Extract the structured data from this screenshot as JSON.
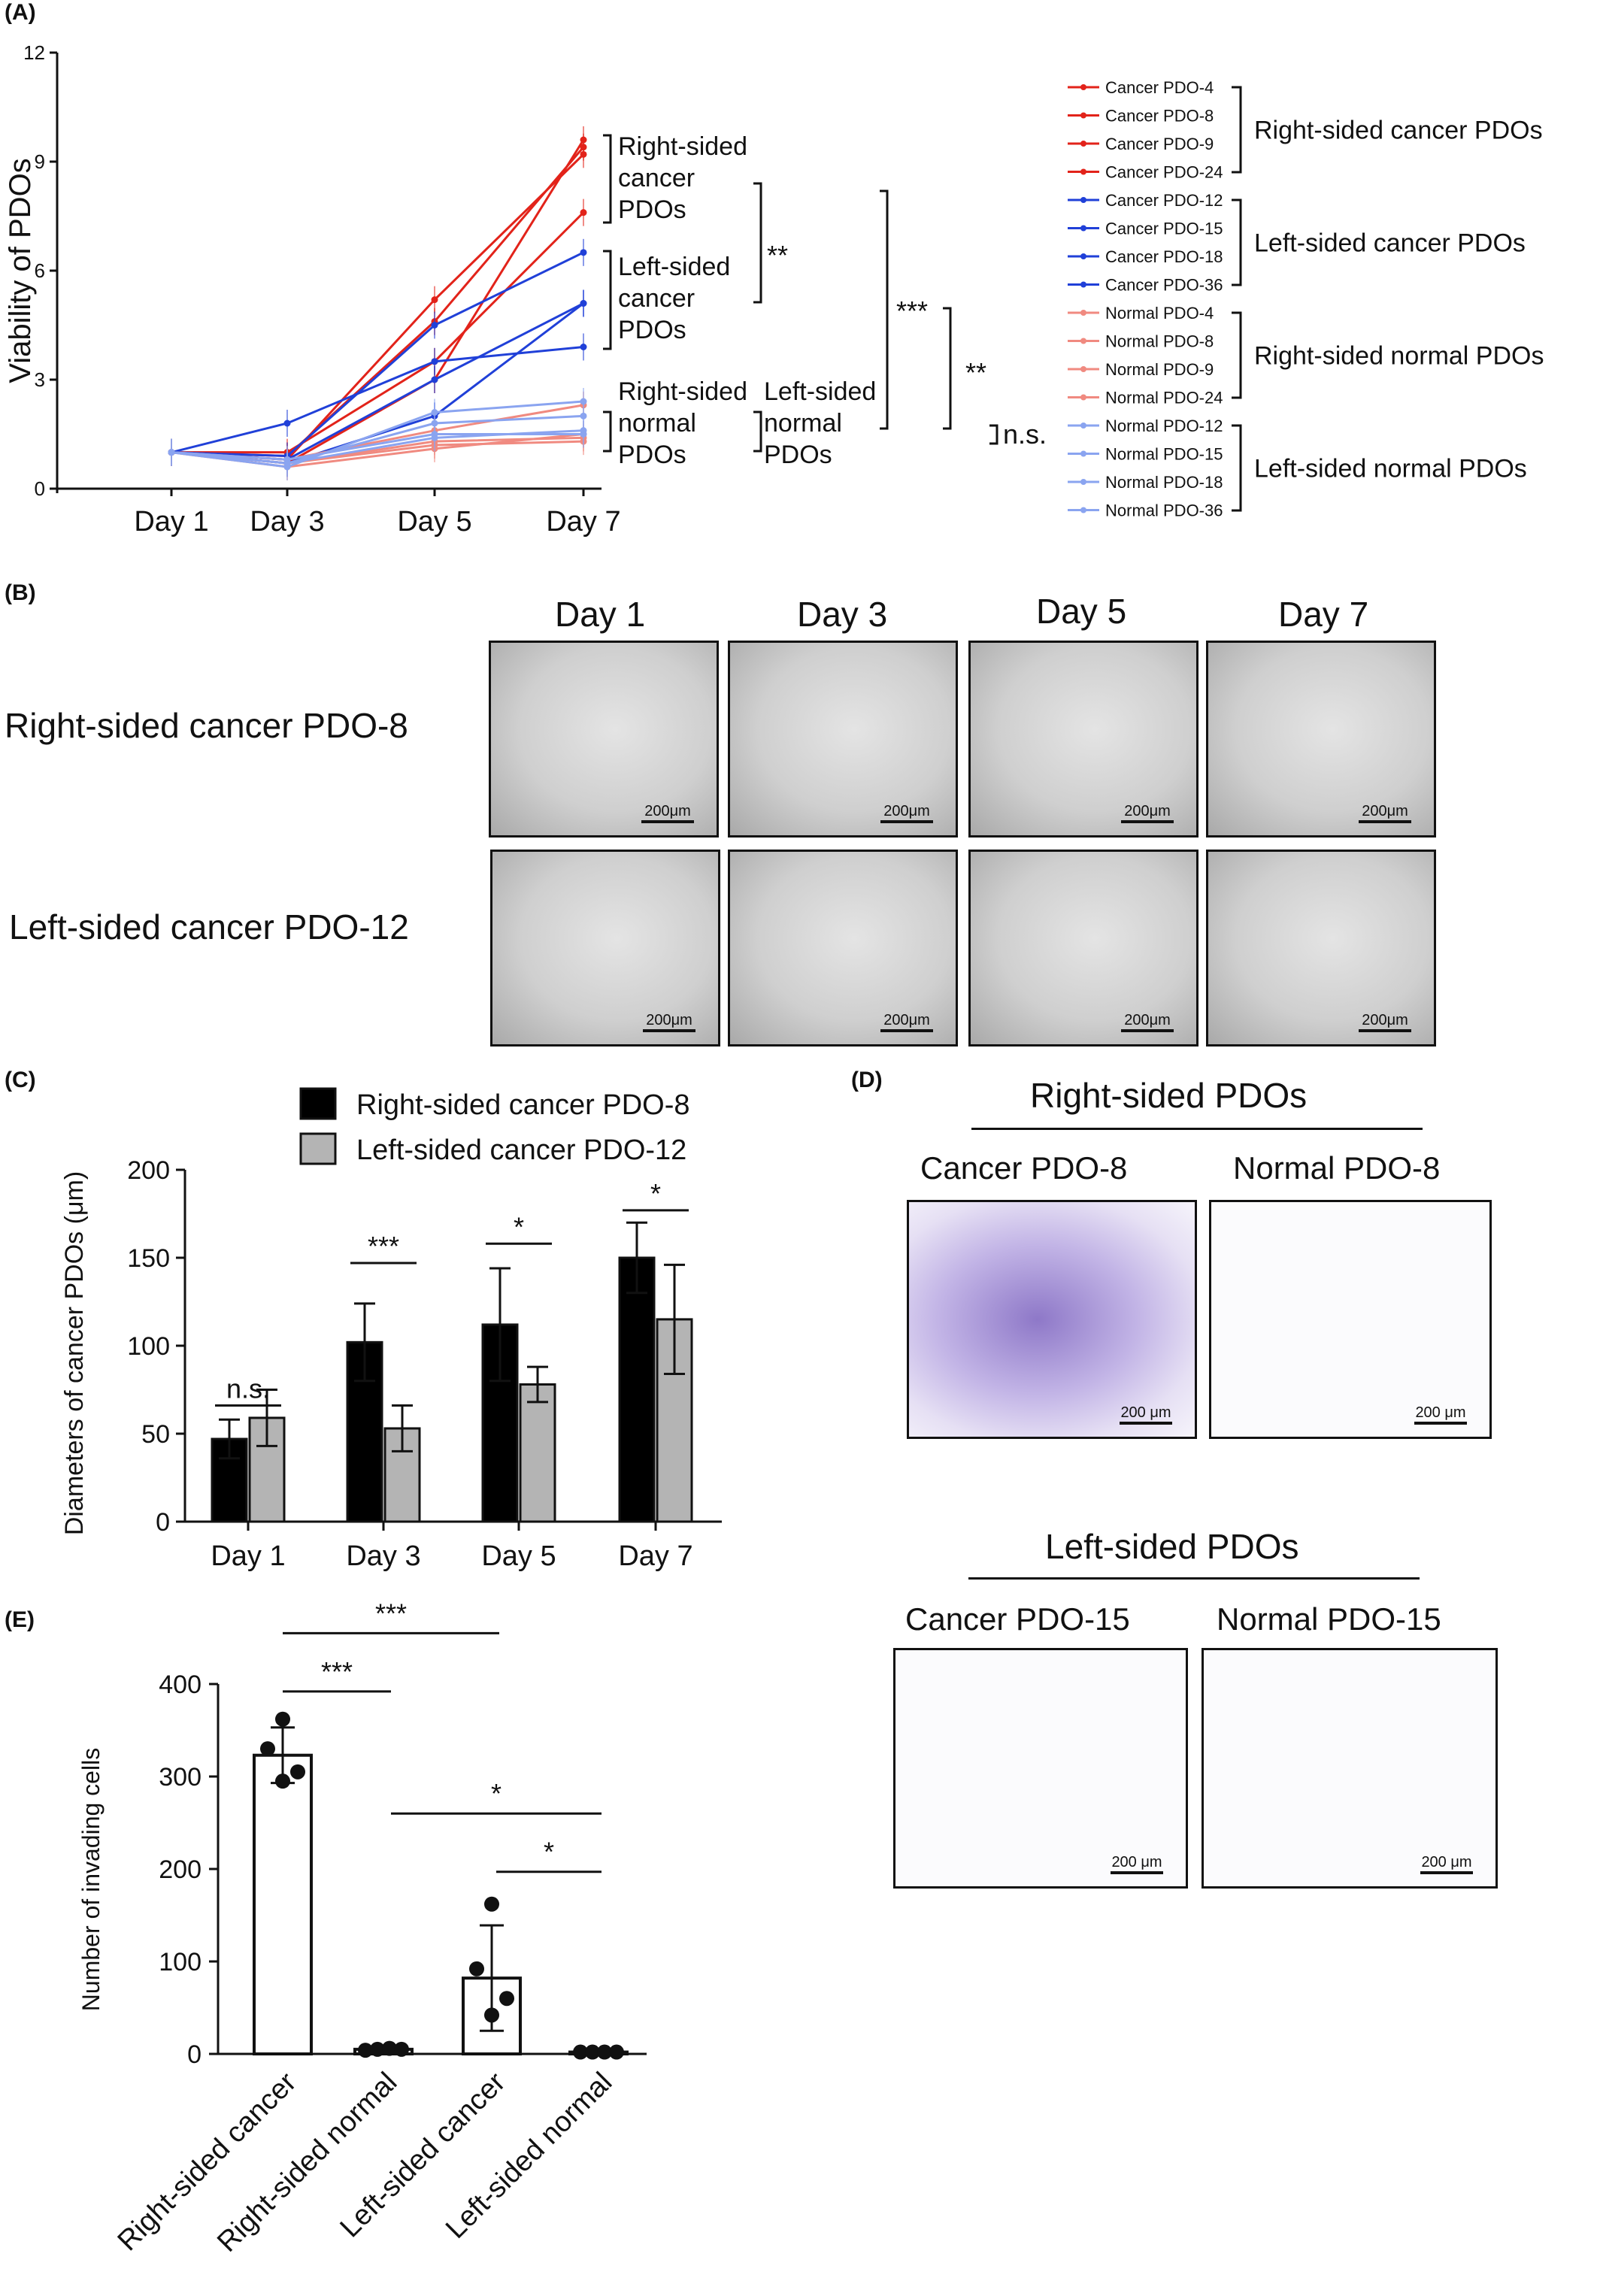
{
  "panel_labels": {
    "a": "(A)",
    "b": "(B)",
    "c": "(C)",
    "d": "(D)",
    "e": "(E)"
  },
  "colors": {
    "red": "#e2231a",
    "lightred": "#f08a80",
    "blue": "#2040d8",
    "lightblue": "#8aa4f0",
    "darkbar": "#000000",
    "graybar": "#b4b4b4"
  },
  "chart_data": [
    {
      "type": "line",
      "ylabel": "Viability of PDOs",
      "x": [
        "Day 1",
        "Day 3",
        "Day 5",
        "Day 7"
      ],
      "ylim": [
        0,
        12
      ],
      "yticks": [
        "0",
        "3",
        "6",
        "9",
        "12"
      ],
      "series": [
        {
          "name": "Cancer PDO-4",
          "group": "rc",
          "values": [
            1.0,
            0.7,
            3.0,
            9.6
          ]
        },
        {
          "name": "Cancer PDO-8",
          "group": "rc",
          "values": [
            1.0,
            0.9,
            4.6,
            9.4
          ]
        },
        {
          "name": "Cancer PDO-9",
          "group": "rc",
          "values": [
            1.0,
            0.8,
            5.2,
            9.2
          ]
        },
        {
          "name": "Cancer PDO-24",
          "group": "rc",
          "values": [
            1.0,
            1.0,
            3.5,
            7.6
          ]
        },
        {
          "name": "Cancer PDO-12",
          "group": "lc",
          "values": [
            1.0,
            1.8,
            3.5,
            3.9
          ]
        },
        {
          "name": "Cancer PDO-15",
          "group": "lc",
          "values": [
            1.0,
            0.8,
            3.0,
            5.1
          ]
        },
        {
          "name": "Cancer PDO-18",
          "group": "lc",
          "values": [
            1.0,
            0.7,
            2.0,
            5.1
          ]
        },
        {
          "name": "Cancer PDO-36",
          "group": "lc",
          "values": [
            1.0,
            0.9,
            4.5,
            6.5
          ]
        },
        {
          "name": "Normal PDO-4",
          "group": "rn",
          "values": [
            1.0,
            0.6,
            1.1,
            1.5
          ]
        },
        {
          "name": "Normal PDO-8",
          "group": "rn",
          "values": [
            1.0,
            0.7,
            1.3,
            1.4
          ]
        },
        {
          "name": "Normal PDO-9",
          "group": "rn",
          "values": [
            1.0,
            0.8,
            1.6,
            2.3
          ]
        },
        {
          "name": "Normal PDO-24",
          "group": "rn",
          "values": [
            1.0,
            0.7,
            1.2,
            1.3
          ]
        },
        {
          "name": "Normal PDO-12",
          "group": "ln",
          "values": [
            1.0,
            0.8,
            1.5,
            1.5
          ]
        },
        {
          "name": "Normal PDO-15",
          "group": "ln",
          "values": [
            1.0,
            0.6,
            2.1,
            2.4
          ]
        },
        {
          "name": "Normal PDO-18",
          "group": "ln",
          "values": [
            1.0,
            0.7,
            1.4,
            1.6
          ]
        },
        {
          "name": "Normal PDO-36",
          "group": "ln",
          "values": [
            1.0,
            0.7,
            1.8,
            2.0
          ]
        }
      ],
      "group_labels": {
        "rc": [
          "Right-sided",
          "cancer",
          "PDOs"
        ],
        "lc": [
          "Left-sided",
          "cancer",
          "PDOs"
        ],
        "rn": [
          "Right-sided",
          "normal",
          "PDOs"
        ],
        "ln": [
          "Left-sided",
          "normal",
          "PDOs"
        ]
      },
      "legend_groups": [
        "Right-sided cancer PDOs",
        "Left-sided cancer PDOs",
        "Right-sided normal PDOs",
        "Left-sided normal PDOs"
      ],
      "significance": [
        "**",
        "***",
        "**",
        "n.s."
      ]
    },
    {
      "type": "bar",
      "ylabel": "Diameters of cancer PDOs (μm)",
      "categories": [
        "Day 1",
        "Day 3",
        "Day 5",
        "Day 7"
      ],
      "ylim": [
        0,
        200
      ],
      "yticks": [
        "0",
        "50",
        "100",
        "150",
        "200"
      ],
      "series": [
        {
          "name": "Right-sided cancer PDO-8",
          "values": [
            47,
            102,
            112,
            150
          ],
          "errors": [
            11,
            22,
            32,
            20
          ]
        },
        {
          "name": "Left-sided cancer PDO-12",
          "values": [
            59,
            53,
            78,
            115
          ],
          "errors": [
            16,
            13,
            10,
            31
          ]
        }
      ],
      "significance": [
        "n.s.",
        "***",
        "*",
        "*"
      ]
    },
    {
      "type": "bar",
      "ylabel": "Number of invading cells",
      "categories": [
        "Right-sided cancer",
        "Right-sided normal",
        "Left-sided cancer",
        "Left-sided normal"
      ],
      "ylim": [
        0,
        400
      ],
      "yticks": [
        "0",
        "100",
        "200",
        "300",
        "400"
      ],
      "values": [
        323,
        5,
        82,
        2
      ],
      "errors": [
        30,
        2,
        57,
        1
      ],
      "points": [
        [
          362,
          330,
          305,
          295
        ],
        [
          4,
          5,
          6,
          5
        ],
        [
          162,
          92,
          60,
          42
        ],
        [
          2,
          2,
          2,
          2
        ]
      ],
      "significance": [
        "***",
        "***",
        "*",
        "*"
      ]
    }
  ],
  "panel_b": {
    "days": [
      "Day 1",
      "Day 3",
      "Day 5",
      "Day 7"
    ],
    "rows": [
      "Right-sided cancer PDO-8",
      "Left-sided cancer PDO-12"
    ],
    "scale": "200μm"
  },
  "panel_d": {
    "right_title": "Right-sided PDOs",
    "left_title": "Left-sided PDOs",
    "labels": [
      "Cancer PDO-8",
      "Normal PDO-8",
      "Cancer PDO-15",
      "Normal PDO-15"
    ],
    "scale": "200 μm"
  }
}
